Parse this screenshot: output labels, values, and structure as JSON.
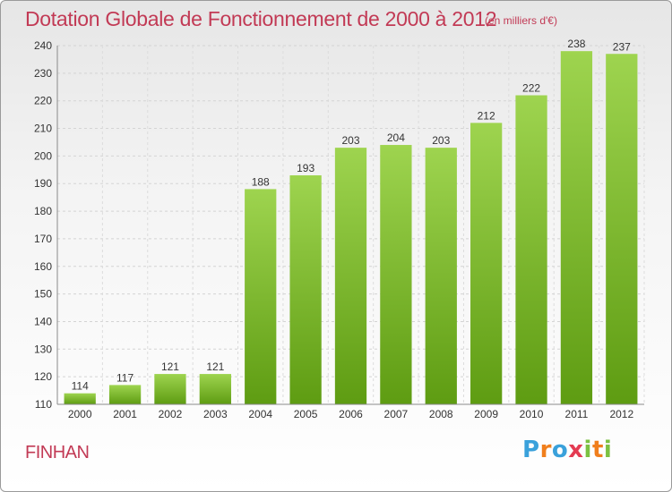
{
  "header": {
    "title": "Dotation Globale de Fonctionnement de 2000 à 2012",
    "subtitle": "(en milliers d'€)"
  },
  "footer": {
    "commune": "FINHAN",
    "brand": "Proxiti"
  },
  "colors": {
    "accent": "#c23a55",
    "bar_top": "#9ed44f",
    "bar_bottom": "#5e9c12"
  },
  "chart_data": {
    "type": "bar",
    "title": "Dotation Globale de Fonctionnement de 2000 à 2012",
    "subtitle": "(en milliers d'€)",
    "xlabel": "",
    "ylabel": "",
    "categories": [
      "2000",
      "2001",
      "2002",
      "2003",
      "2004",
      "2005",
      "2006",
      "2007",
      "2008",
      "2009",
      "2010",
      "2011",
      "2012"
    ],
    "values": [
      114,
      117,
      121,
      121,
      188,
      193,
      203,
      204,
      203,
      212,
      222,
      238,
      237
    ],
    "ylim": [
      110,
      240
    ],
    "yticks": [
      110,
      120,
      130,
      140,
      150,
      160,
      170,
      180,
      190,
      200,
      210,
      220,
      230,
      240
    ],
    "grid": true,
    "legend": "none"
  }
}
